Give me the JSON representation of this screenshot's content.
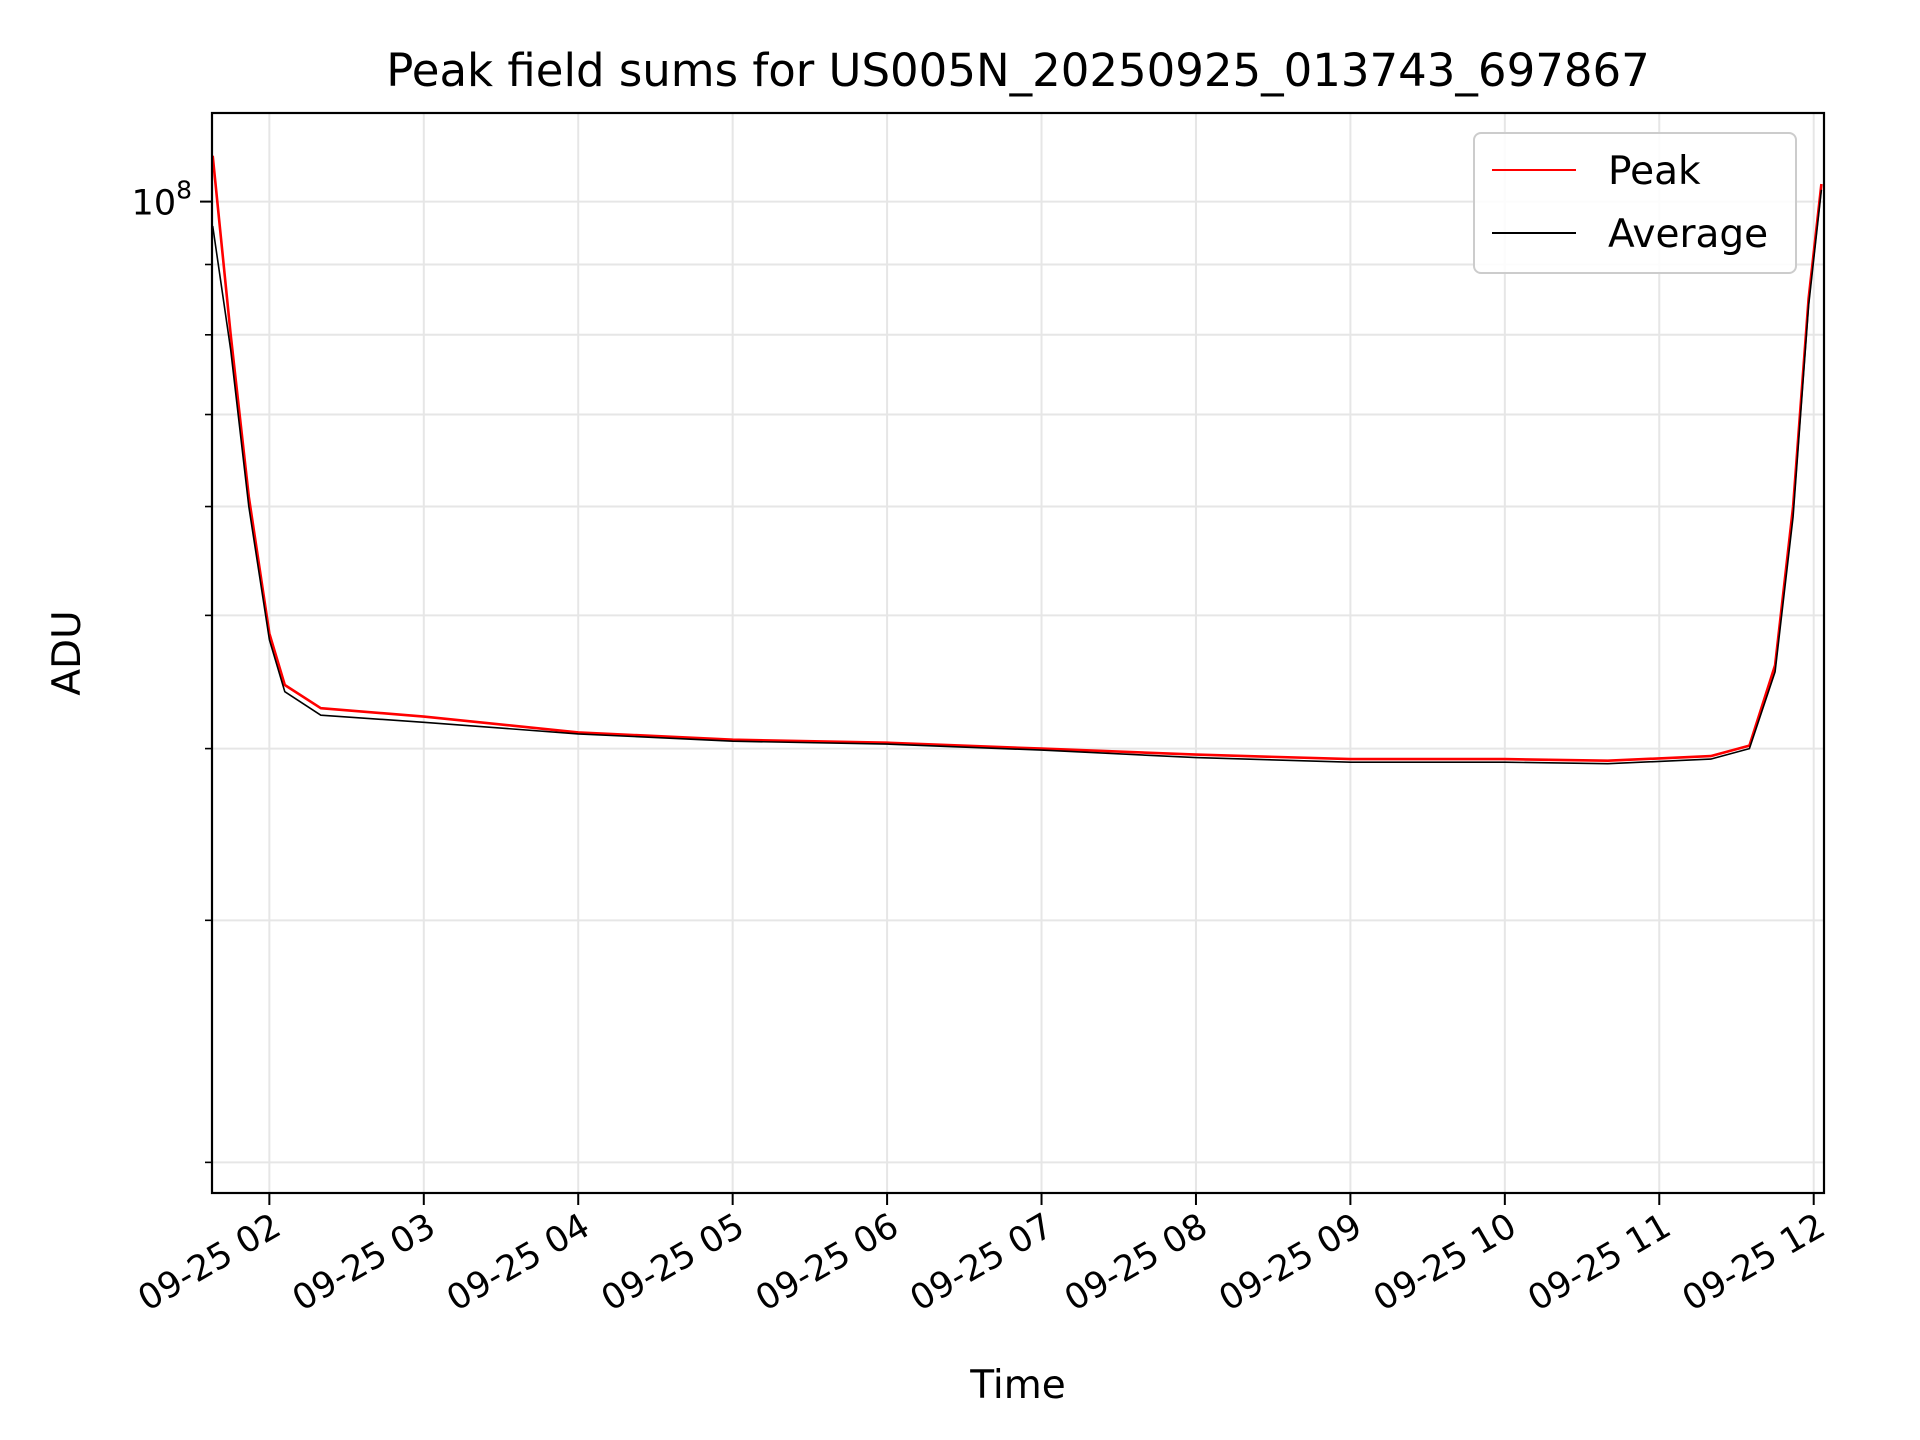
{
  "chart_data": {
    "type": "line",
    "title": "Peak field sums for US005N_20250925_013743_697867",
    "xlabel": "Time",
    "ylabel": "ADU",
    "x_scale": "time",
    "y_scale": "log",
    "xlim": [
      "2025-09-25 01:37:43",
      "2025-09-25 12:04:00"
    ],
    "ylim": [
      19000000,
      116000000
    ],
    "x_ticks": [
      {
        "value": "2025-09-25 02:00",
        "label": "09-25 02"
      },
      {
        "value": "2025-09-25 03:00",
        "label": "09-25 03"
      },
      {
        "value": "2025-09-25 04:00",
        "label": "09-25 04"
      },
      {
        "value": "2025-09-25 05:00",
        "label": "09-25 05"
      },
      {
        "value": "2025-09-25 06:00",
        "label": "09-25 06"
      },
      {
        "value": "2025-09-25 07:00",
        "label": "09-25 07"
      },
      {
        "value": "2025-09-25 08:00",
        "label": "09-25 08"
      },
      {
        "value": "2025-09-25 09:00",
        "label": "09-25 09"
      },
      {
        "value": "2025-09-25 10:00",
        "label": "09-25 10"
      },
      {
        "value": "2025-09-25 11:00",
        "label": "09-25 11"
      },
      {
        "value": "2025-09-25 12:00",
        "label": "09-25 12"
      }
    ],
    "y_major_ticks": [
      {
        "value": 100000000,
        "base": "10",
        "exp": "8"
      }
    ],
    "y_minor_ticks": [
      20000000,
      30000000,
      40000000,
      50000000,
      60000000,
      70000000,
      80000000,
      90000000
    ],
    "grid": true,
    "legend": "top-right",
    "series": [
      {
        "name": "Peak",
        "color": "#ff0000",
        "x": [
          "2025-09-25 01:38",
          "2025-09-25 01:45",
          "2025-09-25 01:52",
          "2025-09-25 02:00",
          "2025-09-25 02:06",
          "2025-09-25 02:20",
          "2025-09-25 03:00",
          "2025-09-25 04:00",
          "2025-09-25 05:00",
          "2025-09-25 06:00",
          "2025-09-25 07:00",
          "2025-09-25 08:00",
          "2025-09-25 09:00",
          "2025-09-25 10:00",
          "2025-09-25 10:40",
          "2025-09-25 11:20",
          "2025-09-25 11:35",
          "2025-09-25 11:45",
          "2025-09-25 11:52",
          "2025-09-25 11:58",
          "2025-09-25 12:03"
        ],
        "values": [
          108000000,
          80000000,
          61000000,
          48500000,
          44500000,
          42800000,
          42200000,
          41100000,
          40600000,
          40400000,
          40000000,
          39600000,
          39300000,
          39300000,
          39200000,
          39500000,
          40200000,
          46000000,
          60000000,
          85000000,
          103000000
        ]
      },
      {
        "name": "Average",
        "color": "#000000",
        "x": [
          "2025-09-25 01:38",
          "2025-09-25 01:45",
          "2025-09-25 01:52",
          "2025-09-25 02:00",
          "2025-09-25 02:06",
          "2025-09-25 02:20",
          "2025-09-25 03:00",
          "2025-09-25 04:00",
          "2025-09-25 05:00",
          "2025-09-25 06:00",
          "2025-09-25 07:00",
          "2025-09-25 08:00",
          "2025-09-25 09:00",
          "2025-09-25 10:00",
          "2025-09-25 10:40",
          "2025-09-25 11:20",
          "2025-09-25 11:35",
          "2025-09-25 11:45",
          "2025-09-25 11:52",
          "2025-09-25 11:58",
          "2025-09-25 12:03"
        ],
        "values": [
          96000000,
          78000000,
          60000000,
          48000000,
          44000000,
          42300000,
          41800000,
          41000000,
          40500000,
          40300000,
          39900000,
          39400000,
          39100000,
          39100000,
          39000000,
          39300000,
          40000000,
          45500000,
          59000000,
          84000000,
          102000000
        ]
      }
    ]
  }
}
